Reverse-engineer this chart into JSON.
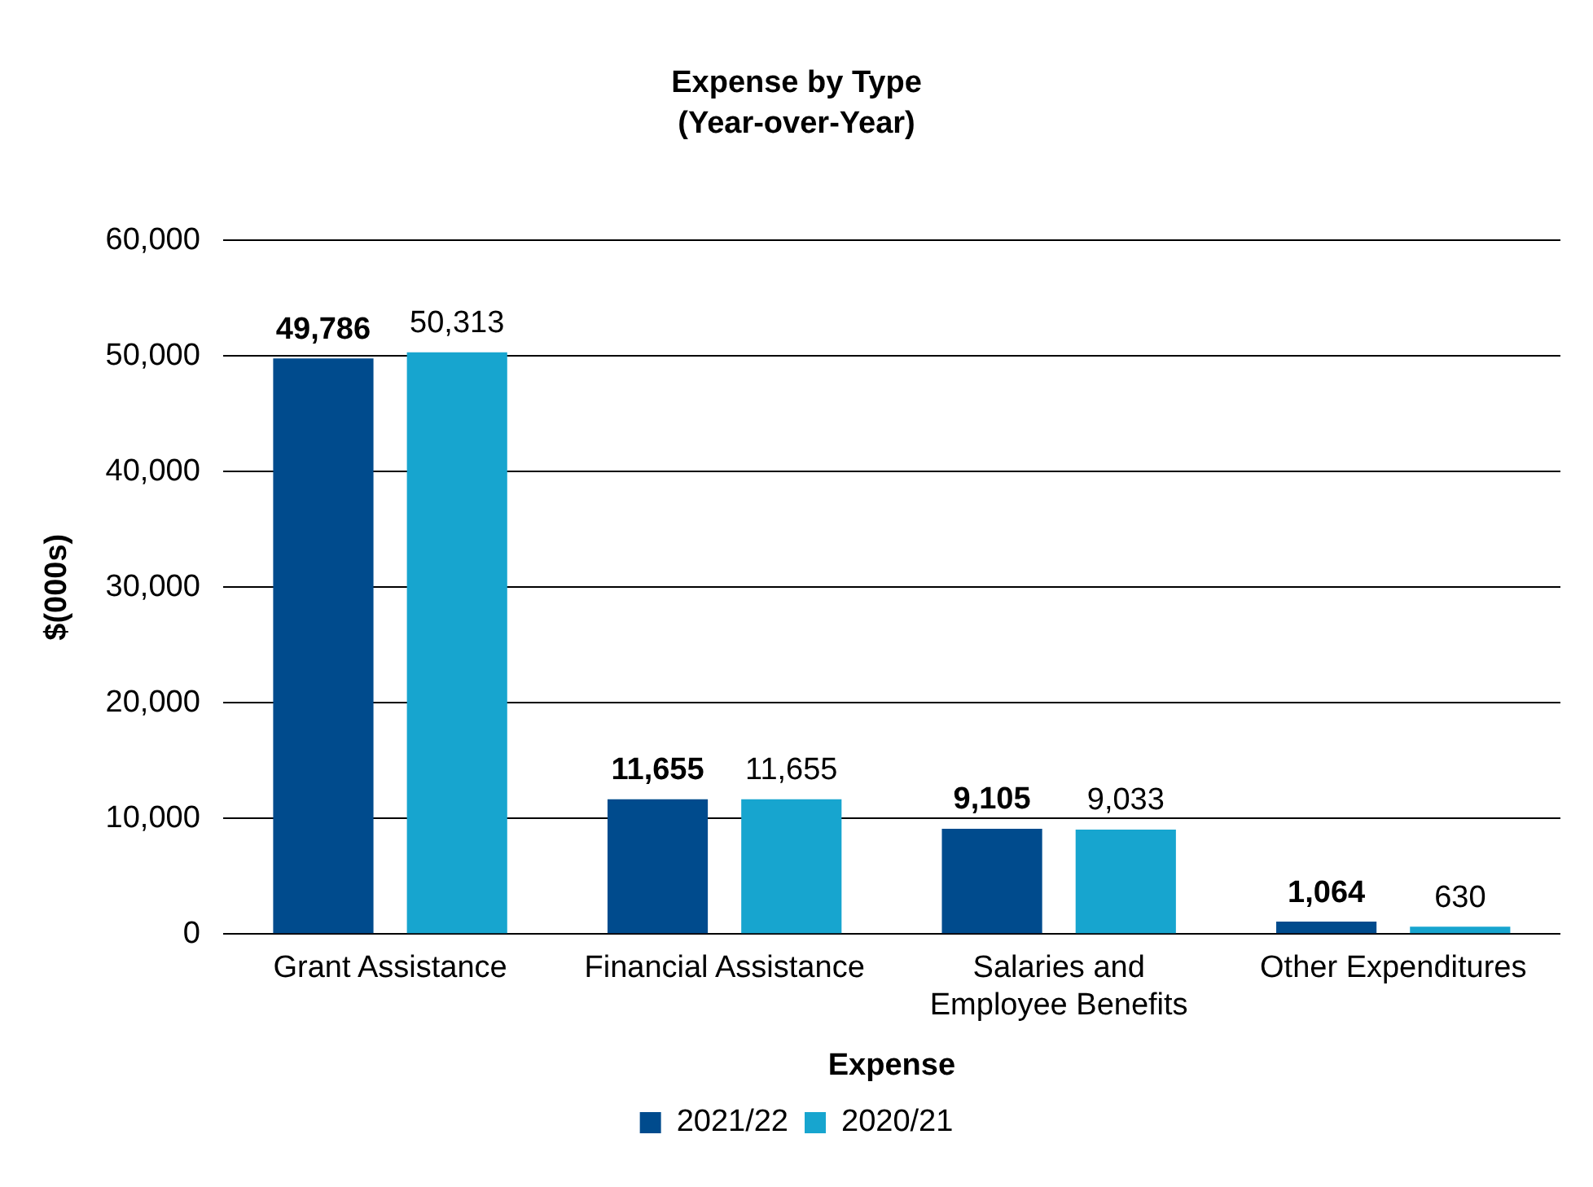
{
  "chart_data": {
    "type": "bar",
    "title": "Expense by Type",
    "subtitle": "(Year-over-Year)",
    "xlabel": "Expense",
    "ylabel": "$(000s)",
    "categories": [
      "Grant Assistance",
      "Financial Assistance",
      "Salaries and Employee Benefits",
      "Other Expenditures"
    ],
    "series": [
      {
        "name": "2021/22",
        "color": "#004b8d",
        "values": [
          49786,
          11655,
          9105,
          1064
        ],
        "value_labels": [
          "49,786",
          "11,655",
          "9,105",
          "1,064"
        ]
      },
      {
        "name": "2020/21",
        "color": "#17a5cf",
        "values": [
          50313,
          11655,
          9033,
          630
        ],
        "value_labels": [
          "50,313",
          "11,655",
          "9,033",
          "630"
        ]
      }
    ],
    "ylim": [
      0,
      60000
    ],
    "yticks": [
      0,
      {
        "value": 10000,
        "label": "10,000"
      },
      {
        "value": 20000,
        "label": "20,000"
      },
      {
        "value": 30000,
        "label": "30,000"
      },
      {
        "value": 40000,
        "label": "40,000"
      },
      {
        "value": 50000,
        "label": "50,000"
      },
      {
        "value": 60000,
        "label": "60,000"
      }
    ],
    "grid": "y",
    "legend": "bottom"
  }
}
